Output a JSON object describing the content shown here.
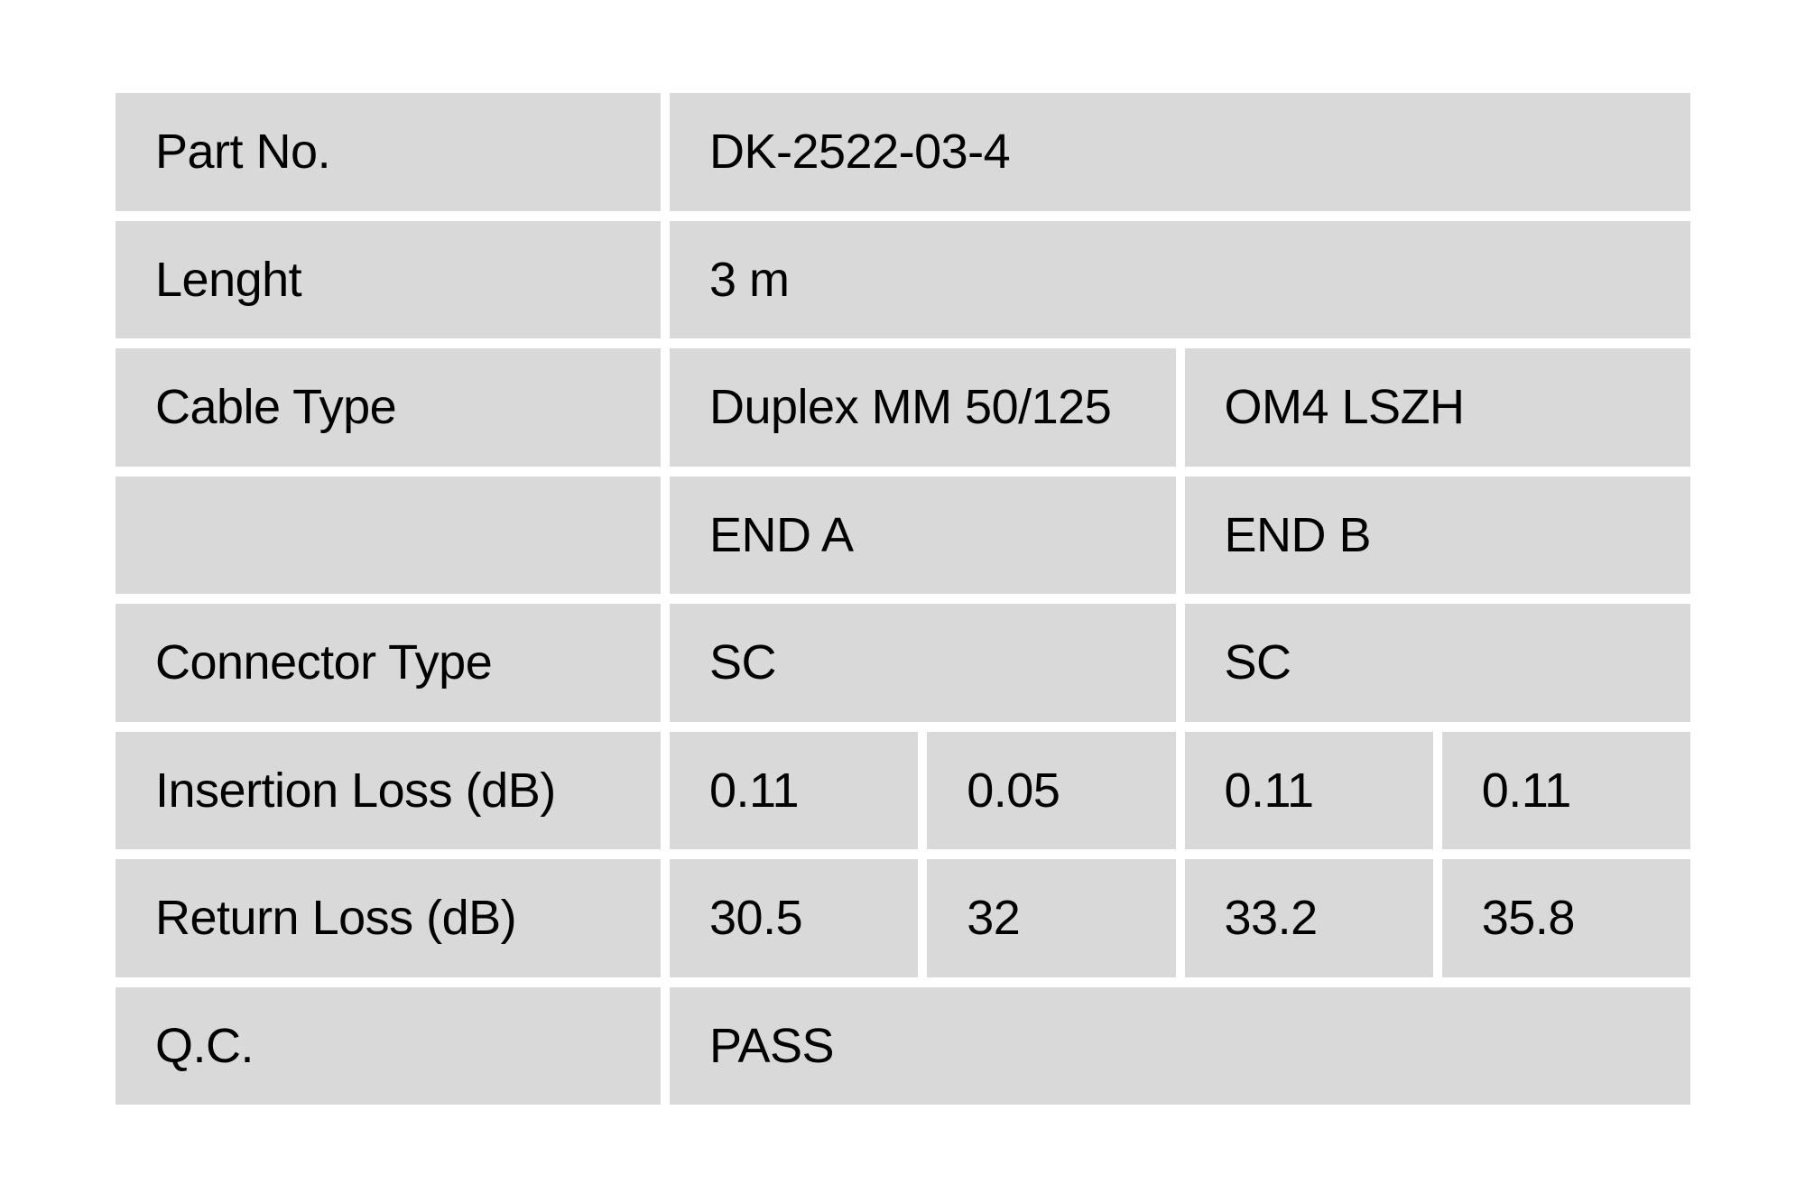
{
  "page": {
    "background": "#ffffff"
  },
  "table": {
    "cell_bg": "#d9d9d9",
    "gap_color": "#ffffff",
    "text_color": "#000000",
    "rows": [
      {
        "key": "part-no",
        "label": "Part No.",
        "cells": [
          {
            "text": "DK-2522-03-4",
            "span": 4
          }
        ]
      },
      {
        "key": "length",
        "label": "Lenght",
        "cells": [
          {
            "text": "3 m",
            "span": 4
          }
        ]
      },
      {
        "key": "cable-type",
        "label": "Cable Type",
        "cells": [
          {
            "text": "Duplex MM 50/125",
            "span": 2
          },
          {
            "text": "OM4 LSZH",
            "span": 2
          }
        ]
      },
      {
        "key": "end-header",
        "label": "",
        "cells": [
          {
            "text": "END A",
            "span": 2
          },
          {
            "text": "END B",
            "span": 2
          }
        ]
      },
      {
        "key": "connector-type",
        "label": "Connector Type",
        "cells": [
          {
            "text": "SC",
            "span": 2
          },
          {
            "text": "SC",
            "span": 2
          }
        ]
      },
      {
        "key": "insertion-loss",
        "label": "Insertion Loss (dB)",
        "cells": [
          {
            "text": "0.11",
            "span": 1
          },
          {
            "text": "0.05",
            "span": 1
          },
          {
            "text": "0.11",
            "span": 1
          },
          {
            "text": "0.11",
            "span": 1
          }
        ]
      },
      {
        "key": "return-loss",
        "label": "Return Loss (dB)",
        "cells": [
          {
            "text": "30.5",
            "span": 1
          },
          {
            "text": "32",
            "span": 1
          },
          {
            "text": "33.2",
            "span": 1
          },
          {
            "text": "35.8",
            "span": 1
          }
        ]
      },
      {
        "key": "qc",
        "label": "Q.C.",
        "cells": [
          {
            "text": "PASS",
            "span": 4
          }
        ]
      }
    ]
  }
}
